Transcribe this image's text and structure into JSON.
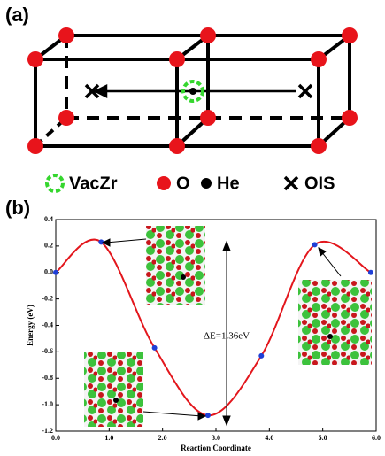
{
  "panel_a": {
    "label": "(a)",
    "legend": [
      "VacZr",
      "O",
      "He",
      "OIS"
    ]
  },
  "chart_data": {
    "type": "line",
    "label": "(b)",
    "x_label": "Reaction Coordinate",
    "y_label": "Energy (eV)",
    "annotation": "ΔE=1.36eV",
    "x": [
      0,
      0.85,
      1.85,
      2.85,
      3.85,
      4.85,
      5.9
    ],
    "values": [
      0,
      0.23,
      -0.57,
      -1.08,
      -0.63,
      0.21,
      0.0
    ],
    "color": "#e3161c",
    "marker_color": "#1f3fd6",
    "xlim": [
      0,
      6
    ],
    "xticks": [
      {
        "value": 0,
        "label": "0.0"
      },
      {
        "value": 1,
        "label": "1.0"
      },
      {
        "value": 2,
        "label": "2.0"
      },
      {
        "value": 3,
        "label": "3.0"
      },
      {
        "value": 4,
        "label": "4.0"
      },
      {
        "value": 5,
        "label": "5.0"
      },
      {
        "value": 6,
        "label": "6.0"
      }
    ],
    "ylim": [
      -1.2,
      0.4
    ],
    "yticks": [
      -1.2,
      {
        "value": -1,
        "label": "-1.0"
      },
      -0.8,
      -0.6,
      -0.4,
      -0.2,
      {
        "value": 0,
        "label": "0.0"
      },
      0.2,
      0.4
    ]
  }
}
